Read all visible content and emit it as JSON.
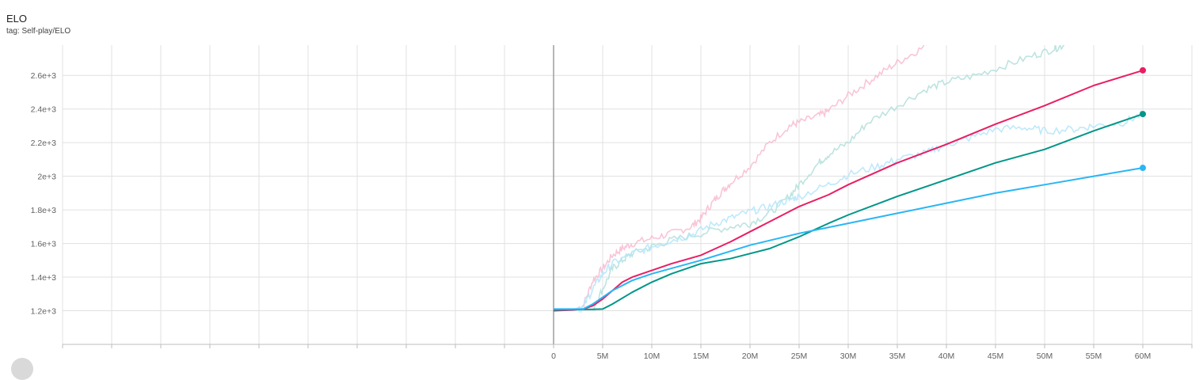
{
  "card": {
    "title": "ELO",
    "tag": "tag: Self-play/ELO"
  },
  "icons": {
    "bottom_left": "fit-domain-icon"
  },
  "chart_data": {
    "type": "line",
    "title": "ELO",
    "xlabel": "",
    "ylabel": "",
    "xlim": [
      -50000000,
      65000000
    ],
    "ylim": [
      1000,
      2780
    ],
    "x_ticks": [
      0,
      5000000,
      10000000,
      15000000,
      20000000,
      25000000,
      30000000,
      35000000,
      40000000,
      45000000,
      50000000,
      55000000,
      60000000
    ],
    "x_tick_labels": [
      "0",
      "5M",
      "10M",
      "15M",
      "20M",
      "25M",
      "30M",
      "35M",
      "40M",
      "45M",
      "50M",
      "55M",
      "60M"
    ],
    "y_ticks": [
      1200,
      1400,
      1600,
      1800,
      2000,
      2200,
      2400,
      2600
    ],
    "y_tick_labels": [
      "1.2e+3",
      "1.4e+3",
      "1.6e+3",
      "1.8e+3",
      "2e+3",
      "2.2e+3",
      "2.4e+3",
      "2.6e+3"
    ],
    "grid": true,
    "legend": "none",
    "series": [
      {
        "color": "#e91e63",
        "raw_color": "#f8bbd0",
        "x": [
          0,
          2000000,
          3000000,
          4000000,
          5000000,
          6000000,
          7000000,
          8000000,
          10000000,
          12000000,
          15000000,
          18000000,
          20000000,
          22000000,
          25000000,
          28000000,
          30000000,
          35000000,
          40000000,
          45000000,
          50000000,
          55000000,
          60000000
        ],
        "values": [
          1200,
          1205,
          1210,
          1230,
          1270,
          1320,
          1370,
          1400,
          1440,
          1480,
          1530,
          1610,
          1670,
          1730,
          1820,
          1890,
          1950,
          2080,
          2190,
          2310,
          2420,
          2540,
          2630
        ],
        "raw_x": [
          0,
          2000000,
          3000000,
          4000000,
          5000000,
          6000000,
          7000000,
          8000000,
          10000000,
          12000000,
          14000000,
          15000000,
          16000000,
          17000000,
          18000000,
          20000000,
          22000000,
          24000000,
          25000000,
          27000000,
          28000000,
          30000000,
          32000000,
          34000000,
          36000000,
          38000000
        ],
        "raw_values": [
          1200,
          1205,
          1230,
          1380,
          1450,
          1530,
          1570,
          1600,
          1630,
          1660,
          1700,
          1750,
          1830,
          1900,
          1960,
          2060,
          2200,
          2300,
          2320,
          2360,
          2390,
          2480,
          2560,
          2640,
          2710,
          2780
        ]
      },
      {
        "color": "#009688",
        "raw_color": "#b2dfdb",
        "x": [
          0,
          2000000,
          4000000,
          5000000,
          6000000,
          8000000,
          10000000,
          12000000,
          15000000,
          18000000,
          20000000,
          22000000,
          25000000,
          28000000,
          30000000,
          35000000,
          40000000,
          45000000,
          50000000,
          55000000,
          60000000
        ],
        "values": [
          1205,
          1207,
          1208,
          1210,
          1240,
          1310,
          1370,
          1420,
          1480,
          1510,
          1540,
          1570,
          1640,
          1720,
          1770,
          1880,
          1980,
          2080,
          2160,
          2270,
          2370
        ],
        "raw_x": [
          0,
          2000000,
          4000000,
          5000000,
          6000000,
          7000000,
          8000000,
          10000000,
          12000000,
          15000000,
          18000000,
          20000000,
          22000000,
          24000000,
          25000000,
          27000000,
          28000000,
          30000000,
          32000000,
          35000000,
          38000000,
          40000000,
          43000000,
          46000000,
          49000000,
          51000000,
          52000000
        ],
        "raw_values": [
          1205,
          1207,
          1210,
          1330,
          1450,
          1500,
          1540,
          1580,
          1620,
          1660,
          1700,
          1720,
          1780,
          1880,
          1950,
          2080,
          2130,
          2200,
          2320,
          2420,
          2520,
          2560,
          2600,
          2660,
          2720,
          2760,
          2780
        ]
      },
      {
        "color": "#29b6f6",
        "raw_color": "#b3e5fc",
        "x": [
          0,
          2000000,
          3000000,
          4000000,
          5000000,
          6000000,
          8000000,
          10000000,
          15000000,
          20000000,
          25000000,
          30000000,
          35000000,
          40000000,
          45000000,
          50000000,
          55000000,
          60000000
        ],
        "values": [
          1210,
          1210,
          1210,
          1240,
          1280,
          1320,
          1380,
          1420,
          1500,
          1590,
          1660,
          1720,
          1780,
          1840,
          1900,
          1950,
          2000,
          2050
        ],
        "raw_x": [
          0,
          2000000,
          3000000,
          4000000,
          5000000,
          6000000,
          8000000,
          10000000,
          12000000,
          14000000,
          16000000,
          18000000,
          20000000,
          22000000,
          24000000,
          25000000,
          28000000,
          30000000,
          33000000,
          35000000,
          38000000,
          40000000,
          42000000,
          45000000,
          48000000,
          50000000,
          53000000,
          55000000,
          58000000,
          60000000
        ],
        "raw_values": [
          1210,
          1210,
          1220,
          1330,
          1420,
          1480,
          1540,
          1580,
          1620,
          1650,
          1710,
          1750,
          1790,
          1820,
          1860,
          1880,
          1950,
          2010,
          2060,
          2100,
          2140,
          2190,
          2220,
          2280,
          2290,
          2270,
          2280,
          2300,
          2320,
          2370
        ]
      }
    ]
  }
}
